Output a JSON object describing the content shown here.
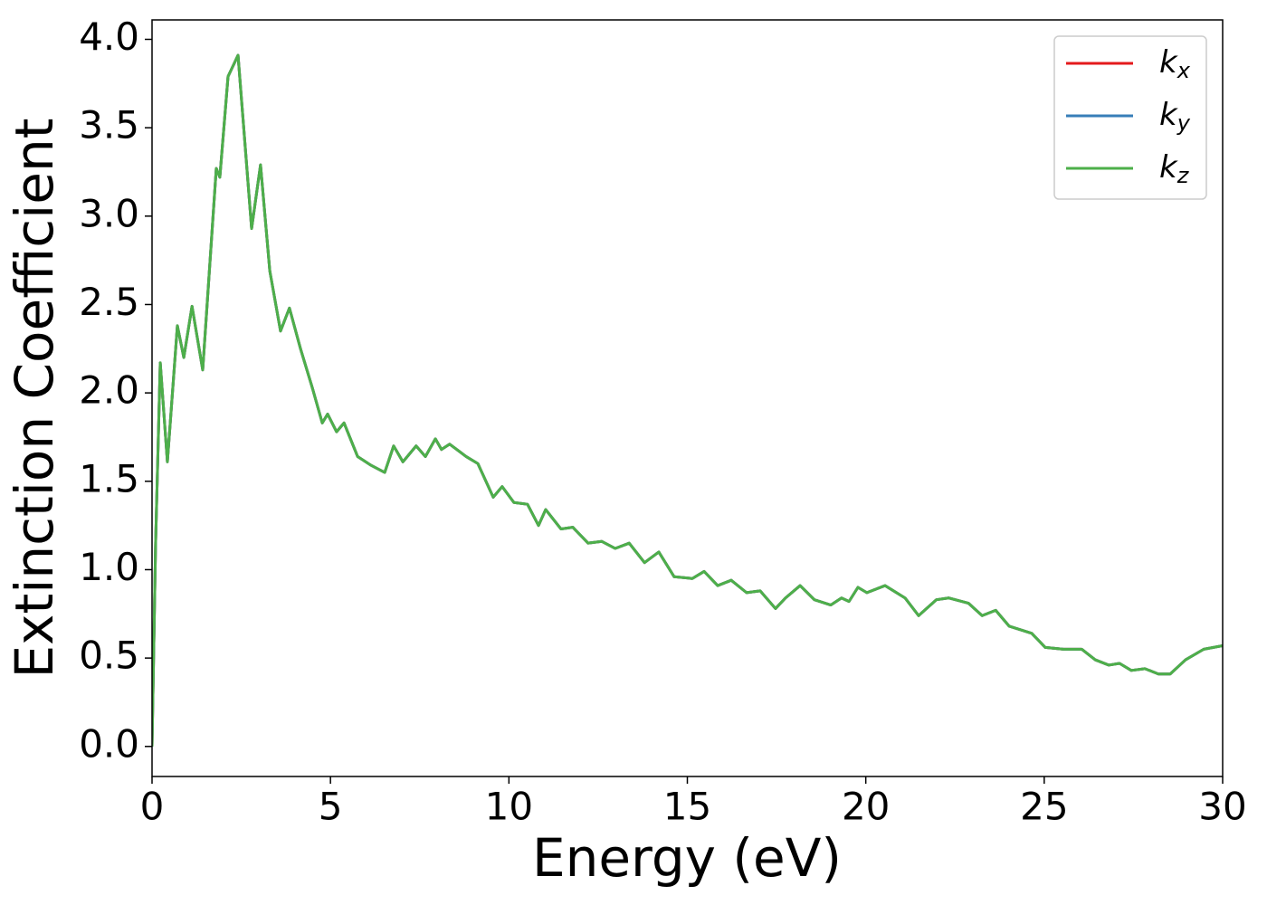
{
  "chart_data": {
    "type": "line",
    "xlabel": "Energy (eV)",
    "ylabel": "Extinction Coefficient",
    "xlim": [
      0,
      30
    ],
    "ylim": [
      -0.17,
      4.11
    ],
    "xticks": [
      0,
      5,
      10,
      15,
      20,
      25,
      30
    ],
    "yticks": [
      {
        "value": 0,
        "label": "0.0"
      },
      {
        "value": 0.5,
        "label": "0.5"
      },
      {
        "value": 1,
        "label": "1.0"
      },
      {
        "value": 1.5,
        "label": "1.5"
      },
      {
        "value": 2,
        "label": "2.0"
      },
      {
        "value": 2.5,
        "label": "2.5"
      },
      {
        "value": 3,
        "label": "3.0"
      },
      {
        "value": 3.5,
        "label": "3.5"
      },
      {
        "value": 4,
        "label": "4.0"
      }
    ],
    "grid": false,
    "legend": "upper right",
    "x": [
      0,
      0.1,
      0.23,
      0.43,
      0.71,
      0.89,
      1.12,
      1.42,
      1.8,
      1.9,
      2.13,
      2.41,
      2.79,
      3.04,
      3.3,
      3.6,
      3.85,
      4.16,
      4.49,
      4.77,
      4.92,
      5.17,
      5.38,
      5.76,
      6.14,
      6.52,
      6.77,
      7.03,
      7.4,
      7.66,
      7.94,
      8.11,
      8.34,
      8.8,
      9.13,
      9.56,
      9.81,
      10.14,
      10.52,
      10.83,
      11.03,
      11.46,
      11.79,
      12.22,
      12.6,
      12.98,
      13.37,
      13.8,
      14.2,
      14.63,
      15.14,
      15.47,
      15.85,
      16.23,
      16.66,
      17.04,
      17.47,
      17.75,
      18.16,
      18.56,
      19.02,
      19.32,
      19.53,
      19.78,
      20.03,
      20.54,
      21.1,
      21.48,
      21.98,
      22.32,
      22.88,
      23.26,
      23.64,
      24.02,
      24.65,
      25.03,
      25.54,
      26.05,
      26.43,
      26.81,
      27.11,
      27.44,
      27.82,
      28.2,
      28.53,
      28.96,
      29.47,
      30
    ],
    "series": [
      {
        "name": "kx",
        "color": "#e41a1c",
        "values": [
          0,
          1.15,
          2.17,
          1.61,
          2.38,
          2.2,
          2.49,
          2.13,
          3.27,
          3.22,
          3.79,
          3.91,
          2.93,
          3.29,
          2.69,
          2.35,
          2.48,
          2.25,
          2.03,
          1.83,
          1.88,
          1.78,
          1.83,
          1.64,
          1.59,
          1.55,
          1.7,
          1.61,
          1.7,
          1.64,
          1.74,
          1.68,
          1.71,
          1.64,
          1.6,
          1.41,
          1.47,
          1.38,
          1.37,
          1.25,
          1.34,
          1.23,
          1.24,
          1.15,
          1.16,
          1.12,
          1.15,
          1.04,
          1.1,
          0.96,
          0.95,
          0.99,
          0.91,
          0.94,
          0.87,
          0.88,
          0.78,
          0.84,
          0.91,
          0.83,
          0.8,
          0.84,
          0.82,
          0.9,
          0.87,
          0.91,
          0.84,
          0.74,
          0.83,
          0.84,
          0.81,
          0.74,
          0.77,
          0.68,
          0.64,
          0.56,
          0.55,
          0.55,
          0.49,
          0.46,
          0.47,
          0.43,
          0.44,
          0.41,
          0.41,
          0.49,
          0.55,
          0.57
        ]
      },
      {
        "name": "ky",
        "color": "#377eb8",
        "values": [
          0,
          1.15,
          2.17,
          1.61,
          2.38,
          2.2,
          2.49,
          2.13,
          3.27,
          3.22,
          3.79,
          3.91,
          2.93,
          3.29,
          2.69,
          2.35,
          2.48,
          2.25,
          2.03,
          1.83,
          1.88,
          1.78,
          1.83,
          1.64,
          1.59,
          1.55,
          1.7,
          1.61,
          1.7,
          1.64,
          1.74,
          1.68,
          1.71,
          1.64,
          1.6,
          1.41,
          1.47,
          1.38,
          1.37,
          1.25,
          1.34,
          1.23,
          1.24,
          1.15,
          1.16,
          1.12,
          1.15,
          1.04,
          1.1,
          0.96,
          0.95,
          0.99,
          0.91,
          0.94,
          0.87,
          0.88,
          0.78,
          0.84,
          0.91,
          0.83,
          0.8,
          0.84,
          0.82,
          0.9,
          0.87,
          0.91,
          0.84,
          0.74,
          0.83,
          0.84,
          0.81,
          0.74,
          0.77,
          0.68,
          0.64,
          0.56,
          0.55,
          0.55,
          0.49,
          0.46,
          0.47,
          0.43,
          0.44,
          0.41,
          0.41,
          0.49,
          0.55,
          0.57
        ]
      },
      {
        "name": "kz",
        "color": "#4daf4a",
        "values": [
          0,
          1.15,
          2.17,
          1.61,
          2.38,
          2.2,
          2.49,
          2.13,
          3.27,
          3.22,
          3.79,
          3.91,
          2.93,
          3.29,
          2.69,
          2.35,
          2.48,
          2.25,
          2.03,
          1.83,
          1.88,
          1.78,
          1.83,
          1.64,
          1.59,
          1.55,
          1.7,
          1.61,
          1.7,
          1.64,
          1.74,
          1.68,
          1.71,
          1.64,
          1.6,
          1.41,
          1.47,
          1.38,
          1.37,
          1.25,
          1.34,
          1.23,
          1.24,
          1.15,
          1.16,
          1.12,
          1.15,
          1.04,
          1.1,
          0.96,
          0.95,
          0.99,
          0.91,
          0.94,
          0.87,
          0.88,
          0.78,
          0.84,
          0.91,
          0.83,
          0.8,
          0.84,
          0.82,
          0.9,
          0.87,
          0.91,
          0.84,
          0.74,
          0.83,
          0.84,
          0.81,
          0.74,
          0.77,
          0.68,
          0.64,
          0.56,
          0.55,
          0.55,
          0.49,
          0.46,
          0.47,
          0.43,
          0.44,
          0.41,
          0.41,
          0.49,
          0.55,
          0.57
        ]
      }
    ]
  }
}
